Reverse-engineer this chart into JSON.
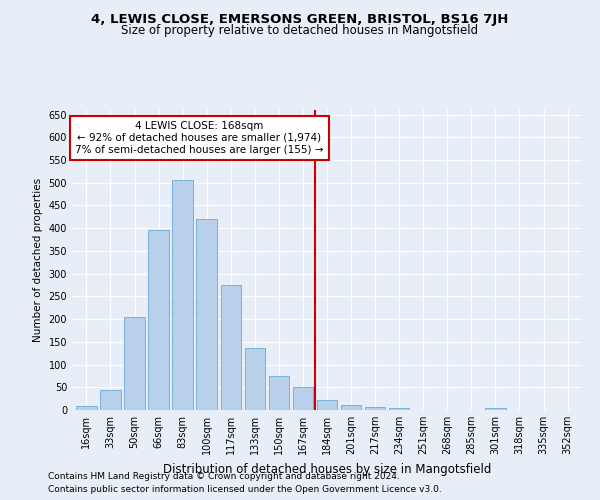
{
  "title": "4, LEWIS CLOSE, EMERSONS GREEN, BRISTOL, BS16 7JH",
  "subtitle": "Size of property relative to detached houses in Mangotsfield",
  "xlabel": "Distribution of detached houses by size in Mangotsfield",
  "ylabel": "Number of detached properties",
  "categories": [
    "16sqm",
    "33sqm",
    "50sqm",
    "66sqm",
    "83sqm",
    "100sqm",
    "117sqm",
    "133sqm",
    "150sqm",
    "167sqm",
    "184sqm",
    "201sqm",
    "217sqm",
    "234sqm",
    "251sqm",
    "268sqm",
    "285sqm",
    "301sqm",
    "318sqm",
    "335sqm",
    "352sqm"
  ],
  "values": [
    8,
    45,
    205,
    395,
    505,
    420,
    275,
    137,
    75,
    50,
    22,
    10,
    7,
    5,
    1,
    0,
    0,
    4,
    0,
    1,
    0
  ],
  "bar_color": "#b8d0ea",
  "bar_edge_color": "#6aaad4",
  "background_color": "#e8eef8",
  "grid_color": "#ffffff",
  "vline_color": "#cc0000",
  "annotation_text": "4 LEWIS CLOSE: 168sqm\n← 92% of detached houses are smaller (1,974)\n7% of semi-detached houses are larger (155) →",
  "annotation_box_color": "#ffffff",
  "annotation_box_edge_color": "#cc0000",
  "ylim": [
    0,
    660
  ],
  "yticks": [
    0,
    50,
    100,
    150,
    200,
    250,
    300,
    350,
    400,
    450,
    500,
    550,
    600,
    650
  ],
  "footer_line1": "Contains HM Land Registry data © Crown copyright and database right 2024.",
  "footer_line2": "Contains public sector information licensed under the Open Government Licence v3.0.",
  "title_fontsize": 9.5,
  "subtitle_fontsize": 8.5,
  "xlabel_fontsize": 8.5,
  "ylabel_fontsize": 7.5,
  "tick_fontsize": 7,
  "annotation_fontsize": 7.5,
  "footer_fontsize": 6.5
}
